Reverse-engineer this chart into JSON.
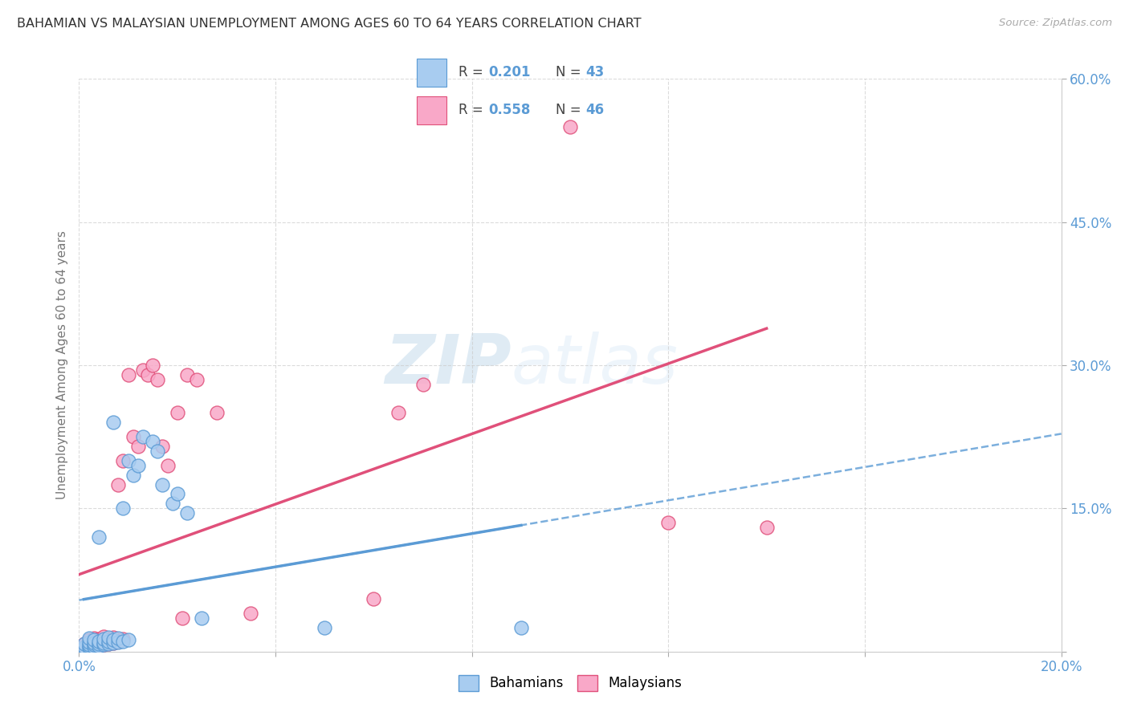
{
  "title": "BAHAMIAN VS MALAYSIAN UNEMPLOYMENT AMONG AGES 60 TO 64 YEARS CORRELATION CHART",
  "source": "Source: ZipAtlas.com",
  "ylabel": "Unemployment Among Ages 60 to 64 years",
  "xlim": [
    0.0,
    0.2
  ],
  "ylim": [
    0.0,
    0.6
  ],
  "xticks": [
    0.0,
    0.04,
    0.08,
    0.12,
    0.16,
    0.2
  ],
  "yticks": [
    0.0,
    0.15,
    0.3,
    0.45,
    0.6
  ],
  "background_color": "#ffffff",
  "watermark_text": "ZIPatlas",
  "bahamian_color": "#a8ccf0",
  "malaysian_color": "#f9a8c8",
  "bahamian_edge_color": "#5b9bd5",
  "malaysian_edge_color": "#e0507a",
  "bahamian_line_color": "#5b9bd5",
  "malaysian_line_color": "#e0507a",
  "dashed_color": "#5b9bd5",
  "r_bahamian": 0.201,
  "n_bahamian": 43,
  "r_malaysian": 0.558,
  "n_malaysian": 46,
  "bahamian_x": [
    0.001,
    0.001,
    0.001,
    0.002,
    0.002,
    0.002,
    0.002,
    0.002,
    0.003,
    0.003,
    0.003,
    0.003,
    0.004,
    0.004,
    0.004,
    0.004,
    0.005,
    0.005,
    0.005,
    0.006,
    0.006,
    0.006,
    0.007,
    0.007,
    0.007,
    0.008,
    0.008,
    0.009,
    0.009,
    0.01,
    0.01,
    0.011,
    0.012,
    0.013,
    0.015,
    0.016,
    0.017,
    0.019,
    0.02,
    0.022,
    0.025,
    0.05,
    0.09
  ],
  "bahamian_y": [
    0.003,
    0.005,
    0.008,
    0.004,
    0.006,
    0.007,
    0.01,
    0.014,
    0.005,
    0.007,
    0.009,
    0.012,
    0.006,
    0.008,
    0.011,
    0.12,
    0.007,
    0.009,
    0.013,
    0.008,
    0.011,
    0.015,
    0.009,
    0.012,
    0.24,
    0.01,
    0.014,
    0.011,
    0.15,
    0.012,
    0.2,
    0.185,
    0.195,
    0.225,
    0.22,
    0.21,
    0.175,
    0.155,
    0.165,
    0.145,
    0.035,
    0.025,
    0.025
  ],
  "malaysian_x": [
    0.001,
    0.001,
    0.001,
    0.002,
    0.002,
    0.002,
    0.002,
    0.003,
    0.003,
    0.003,
    0.003,
    0.004,
    0.004,
    0.004,
    0.005,
    0.005,
    0.005,
    0.006,
    0.006,
    0.007,
    0.007,
    0.008,
    0.008,
    0.009,
    0.009,
    0.01,
    0.011,
    0.012,
    0.013,
    0.014,
    0.015,
    0.016,
    0.017,
    0.018,
    0.02,
    0.021,
    0.022,
    0.024,
    0.028,
    0.035,
    0.06,
    0.065,
    0.07,
    0.1,
    0.12,
    0.14
  ],
  "malaysian_y": [
    0.003,
    0.005,
    0.008,
    0.004,
    0.006,
    0.009,
    0.012,
    0.005,
    0.007,
    0.01,
    0.014,
    0.006,
    0.009,
    0.013,
    0.007,
    0.01,
    0.016,
    0.008,
    0.012,
    0.009,
    0.015,
    0.011,
    0.175,
    0.013,
    0.2,
    0.29,
    0.225,
    0.215,
    0.295,
    0.29,
    0.3,
    0.285,
    0.215,
    0.195,
    0.25,
    0.035,
    0.29,
    0.285,
    0.25,
    0.04,
    0.055,
    0.25,
    0.28,
    0.55,
    0.135,
    0.13
  ]
}
